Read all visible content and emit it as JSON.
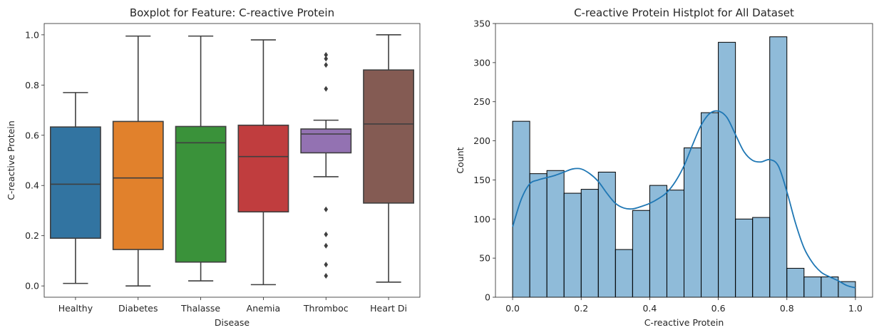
{
  "chart_data": [
    {
      "type": "box",
      "title": "Boxplot for Feature: C-reactive Protein",
      "xlabel": "Disease",
      "ylabel": "C-reactive Protein",
      "ylim": [
        -0.045,
        1.045
      ],
      "yticks": [
        0.0,
        0.2,
        0.4,
        0.6,
        0.8,
        1.0
      ],
      "ytick_labels": [
        "0.0",
        "0.2",
        "0.4",
        "0.6",
        "0.8",
        "1.0"
      ],
      "categories": [
        "Healthy",
        "Diabetes",
        "Thalasse",
        "Anemia",
        "Thromboc",
        "Heart Di"
      ],
      "colors": [
        "#3274a1",
        "#e1812c",
        "#3a923a",
        "#c03d3e",
        "#9372b2",
        "#845b53"
      ],
      "boxes": [
        {
          "min": 0.01,
          "q1": 0.19,
          "median": 0.405,
          "q3": 0.633,
          "max": 0.77,
          "outliers": []
        },
        {
          "min": 0.0,
          "q1": 0.145,
          "median": 0.43,
          "q3": 0.655,
          "max": 0.995,
          "outliers": []
        },
        {
          "min": 0.02,
          "q1": 0.095,
          "median": 0.57,
          "q3": 0.635,
          "max": 0.995,
          "outliers": []
        },
        {
          "min": 0.005,
          "q1": 0.295,
          "median": 0.515,
          "q3": 0.64,
          "max": 0.98,
          "outliers": []
        },
        {
          "min": 0.435,
          "q1": 0.53,
          "median": 0.605,
          "q3": 0.625,
          "max": 0.66,
          "outliers": [
            0.92,
            0.905,
            0.88,
            0.785,
            0.305,
            0.205,
            0.16,
            0.085,
            0.04
          ]
        },
        {
          "min": 0.015,
          "q1": 0.33,
          "median": 0.645,
          "q3": 0.86,
          "max": 1.0,
          "outliers": []
        }
      ]
    },
    {
      "type": "histogram",
      "title": "C-reactive Protein Histplot for All Dataset",
      "xlabel": "C-reactive Protein",
      "ylabel": "Count",
      "xlim": [
        -0.05,
        1.05
      ],
      "ylim": [
        0,
        350
      ],
      "xticks": [
        0.0,
        0.2,
        0.4,
        0.6,
        0.8,
        1.0
      ],
      "xtick_labels": [
        "0.0",
        "0.2",
        "0.4",
        "0.6",
        "0.8",
        "1.0"
      ],
      "yticks": [
        0,
        50,
        100,
        150,
        200,
        250,
        300,
        350
      ],
      "ytick_labels": [
        "0",
        "50",
        "100",
        "150",
        "200",
        "250",
        "300",
        "350"
      ],
      "bin_edges": [
        0.0,
        0.05,
        0.1,
        0.15,
        0.2,
        0.25,
        0.3,
        0.35,
        0.4,
        0.45,
        0.5,
        0.55,
        0.6,
        0.65,
        0.7,
        0.75,
        0.8,
        0.85,
        0.9,
        0.95,
        1.0
      ],
      "counts": [
        225,
        158,
        162,
        133,
        138,
        160,
        61,
        111,
        143,
        137,
        191,
        236,
        326,
        100,
        102,
        333,
        37,
        26,
        26,
        20
      ],
      "bar_color": "#1f77b4",
      "kde": {
        "x": [
          0.0,
          0.025,
          0.05,
          0.075,
          0.1,
          0.125,
          0.15,
          0.175,
          0.2,
          0.225,
          0.25,
          0.275,
          0.3,
          0.325,
          0.35,
          0.375,
          0.4,
          0.425,
          0.45,
          0.475,
          0.5,
          0.525,
          0.55,
          0.575,
          0.6,
          0.625,
          0.65,
          0.675,
          0.7,
          0.725,
          0.75,
          0.775,
          0.8,
          0.825,
          0.85,
          0.875,
          0.9,
          0.925,
          0.95,
          0.975,
          1.0
        ],
        "y": [
          90,
          125,
          145,
          150,
          153,
          156,
          160,
          164,
          164,
          158,
          148,
          133,
          120,
          114,
          113,
          116,
          120,
          126,
          134,
          148,
          168,
          195,
          220,
          235,
          238,
          230,
          208,
          186,
          175,
          173,
          176,
          168,
          135,
          95,
          63,
          44,
          32,
          26,
          21,
          15,
          12
        ]
      }
    }
  ]
}
